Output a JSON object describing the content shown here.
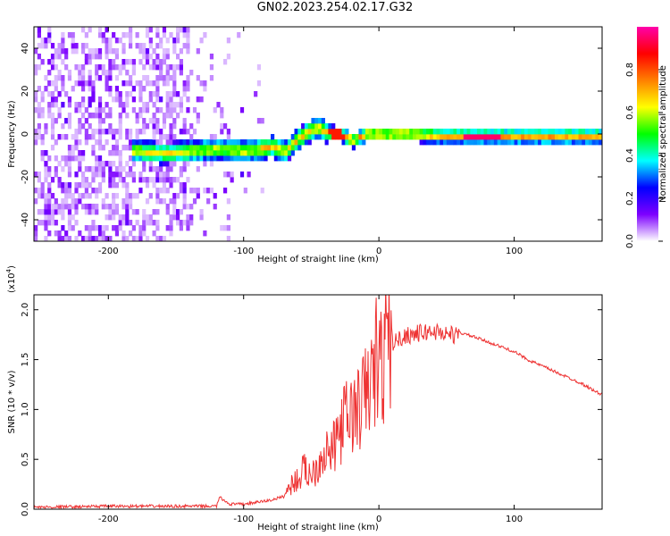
{
  "title": "GN02.2023.254.02.17.G32",
  "chart_data": [
    {
      "type": "heatmap",
      "name": "spectrogram",
      "xlabel": "Height of straight line (km)",
      "ylabel": "Frequency (Hz)",
      "xlim": [
        -255,
        165
      ],
      "ylim": [
        -50,
        50
      ],
      "x_ticks": [
        -200,
        -100,
        0,
        100
      ],
      "y_ticks": [
        -40,
        -20,
        0,
        20,
        40
      ],
      "colorbar": {
        "label": "Normalized spectral amplitude",
        "range": [
          0,
          1
        ],
        "ticks": [
          "0.0",
          "0.2",
          "0.4",
          "0.6",
          "0.8"
        ],
        "colormap": [
          "#ffffff",
          "#7d00ff",
          "#0000ff",
          "#00ffff",
          "#00ff00",
          "#ffff00",
          "#ff8000",
          "#ff0000",
          "#ff00aa"
        ]
      },
      "ridge": {
        "x": [
          -180,
          -160,
          -140,
          -120,
          -100,
          -80,
          -70,
          -60,
          -50,
          -45,
          -40,
          -30,
          -20,
          -10,
          0,
          20,
          50,
          80,
          100,
          130,
          165
        ],
        "freq": [
          -8,
          -9,
          -8,
          -7,
          -8,
          -6,
          -8,
          -2,
          2,
          3,
          1,
          0,
          -3,
          0,
          0,
          0,
          -1,
          -1,
          -1,
          -1,
          -1
        ]
      }
    },
    {
      "type": "line",
      "name": "snr",
      "xlabel": "Height of straight line (km)",
      "ylabel": "SNR (10 * v/v)",
      "scale_label_base": "(x10",
      "scale_label_exp": "4",
      "scale_label_end": ")",
      "xlim": [
        -255,
        165
      ],
      "ylim": [
        0,
        2.15
      ],
      "x_ticks": [
        -200,
        -100,
        0,
        100
      ],
      "y_ticks": [
        "0.0",
        "0.5",
        "1.0",
        "1.5",
        "2.0"
      ],
      "line_color": "#ee3333",
      "series": [
        {
          "x": [
            -255,
            -200,
            -150,
            -120,
            -118,
            -110,
            -100,
            -90,
            -80,
            -70,
            -65,
            -60,
            -55,
            -50,
            -45,
            -40,
            -35,
            -30,
            -25,
            -20,
            -15,
            -10,
            -5,
            -2,
            0,
            5,
            10,
            20,
            30,
            40,
            50,
            60,
            70,
            80,
            90,
            100,
            110,
            120,
            130,
            140,
            150,
            160,
            165
          ],
          "y": [
            0.02,
            0.03,
            0.03,
            0.03,
            0.12,
            0.05,
            0.05,
            0.07,
            0.09,
            0.13,
            0.25,
            0.3,
            0.4,
            0.35,
            0.45,
            0.6,
            0.55,
            0.75,
            0.9,
            0.95,
            1.0,
            1.15,
            1.3,
            1.4,
            1.35,
            1.6,
            1.7,
            1.78,
            1.8,
            1.82,
            1.8,
            1.77,
            1.73,
            1.68,
            1.63,
            1.58,
            1.5,
            1.44,
            1.38,
            1.32,
            1.26,
            1.18,
            1.15
          ]
        }
      ]
    }
  ]
}
